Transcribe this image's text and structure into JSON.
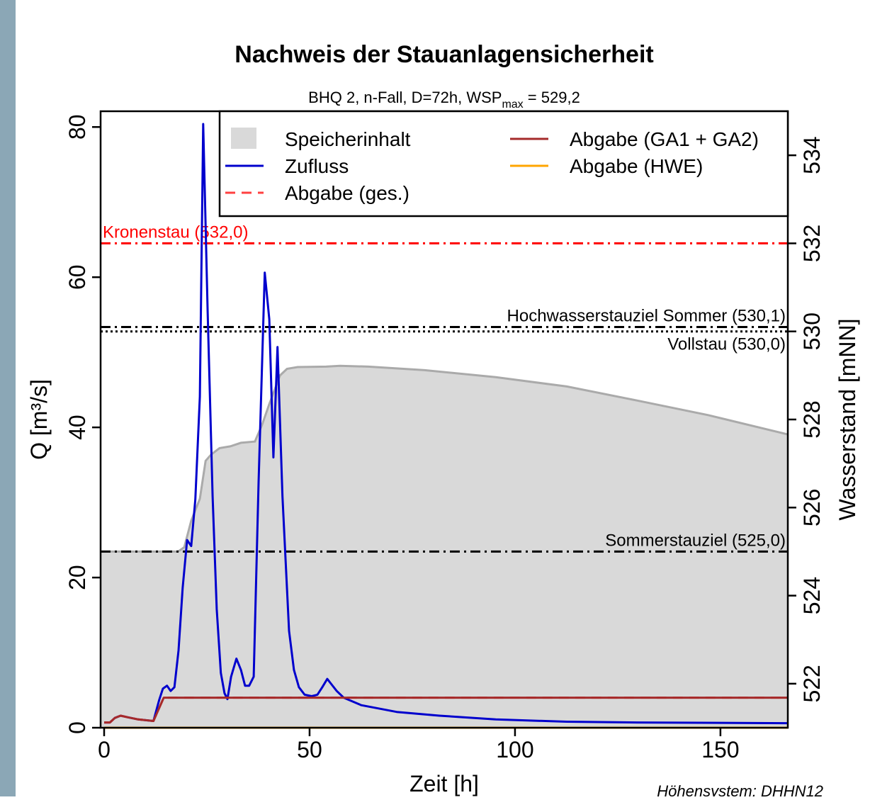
{
  "chart_data": {
    "type": "line",
    "title": "Nachweis der Stauanlagensicherheit",
    "subtitle": "BHQ 2, n-Fall, D=72h, WSP",
    "subtitle_sub": "max",
    "subtitle_end": " = 529,2",
    "xlabel": "Zeit [h]",
    "ylabel": "Q [m³/s]",
    "y2label": "Wasserstand [mNN]",
    "footnote": "Höhensystem: DHHN12",
    "xlim": [
      -0.86,
      166.4
    ],
    "xticks": [
      0,
      50,
      100,
      150
    ],
    "ylim": [
      0,
      82.1
    ],
    "yticks": [
      0,
      20,
      40,
      60,
      80
    ],
    "y2lim": [
      521.0,
      535.0
    ],
    "y2ticks": [
      522,
      524,
      526,
      528,
      530,
      532,
      534
    ],
    "legend": "top-right",
    "series": [
      {
        "name": "Speicherinhalt",
        "type": "area",
        "axis": "y2",
        "color": "#d9d9d9",
        "line_color": "#aaaaaa",
        "x": [
          -0.86,
          18,
          19.5,
          21.2,
          23.3,
          24.7,
          26,
          28.1,
          30.7,
          33.3,
          36.7,
          38.4,
          40.2,
          42.8,
          44.5,
          47.1,
          54,
          57.4,
          64.3,
          78,
          95.3,
          112.6,
          129.8,
          147,
          166.4
        ],
        "values": [
          525.0,
          525.0,
          525.1,
          525.7,
          526.2,
          527.06,
          527.2,
          527.35,
          527.39,
          527.47,
          527.5,
          527.87,
          528.35,
          529.0,
          529.15,
          529.19,
          529.2,
          529.22,
          529.2,
          529.12,
          528.96,
          528.75,
          528.43,
          528.1,
          527.66
        ]
      },
      {
        "name": "Zufluss",
        "type": "line",
        "axis": "y",
        "color": "#0000cd",
        "x": [
          0,
          1.4,
          2.6,
          4,
          5.7,
          8.3,
          12,
          13.4,
          14.3,
          15.3,
          16.2,
          17.1,
          18.1,
          19.1,
          20.2,
          21.2,
          22.2,
          23.3,
          24.1,
          25.2,
          26.4,
          27.4,
          28.4,
          29.3,
          30,
          30.9,
          32.2,
          33.3,
          34.3,
          35.3,
          36.4,
          37.6,
          39.1,
          40.2,
          41.2,
          42.2,
          43.4,
          45,
          46.2,
          47.4,
          48.8,
          50.5,
          51.9,
          53.1,
          54.3,
          55.3,
          56.6,
          58.3,
          62.6,
          71.2,
          81.6,
          95.3,
          112.6,
          129.8,
          166.4
        ],
        "values": [
          0.7,
          0.7,
          1.3,
          1.6,
          1.4,
          1.1,
          0.9,
          3.7,
          5.2,
          5.6,
          4.9,
          5.4,
          10.3,
          18.6,
          25,
          24.2,
          30.4,
          44.1,
          80.4,
          55.4,
          30.8,
          15.8,
          7.3,
          4.6,
          3.8,
          6.8,
          9.2,
          7.7,
          5.6,
          5.6,
          6.8,
          32.7,
          60.6,
          54.4,
          36,
          50.7,
          30.8,
          12.9,
          7.7,
          5.4,
          4.4,
          4.2,
          4.4,
          5.4,
          6.5,
          5.8,
          4.9,
          4,
          3,
          2.1,
          1.6,
          1.1,
          0.8,
          0.7,
          0.6
        ]
      },
      {
        "name": "Abgabe (ges.)",
        "type": "line",
        "axis": "y",
        "color": "#ff4040",
        "dash": "dashed",
        "x": [
          0,
          1.4,
          2.6,
          4,
          5.7,
          8.3,
          12,
          14.5,
          166.4
        ],
        "values": [
          0.7,
          0.7,
          1.3,
          1.6,
          1.4,
          1.1,
          0.9,
          4.0,
          4.0
        ]
      },
      {
        "name": "Abgabe (GA1 + GA2)",
        "type": "line",
        "axis": "y",
        "color": "#a52a2a",
        "x": [
          0,
          1.4,
          2.6,
          4,
          5.7,
          8.3,
          12,
          14.5,
          166.4
        ],
        "values": [
          0.7,
          0.7,
          1.3,
          1.6,
          1.4,
          1.1,
          0.9,
          4.0,
          4.0
        ]
      },
      {
        "name": "Abgabe (HWE)",
        "type": "line",
        "axis": "y",
        "color": "#ffa500",
        "x": [
          0,
          166.4
        ],
        "values": [
          0,
          0
        ]
      }
    ],
    "reference_lines": [
      {
        "label": "Kronenstau (532,0)",
        "value": 532.0,
        "color": "#ff0000",
        "dash": "dashdot",
        "label_align": "left",
        "label_position": "above"
      },
      {
        "label": "Hochwasserstauziel Sommer (530,1)",
        "value": 530.1,
        "color": "#000000",
        "dash": "dashdot",
        "label_align": "right",
        "label_position": "above"
      },
      {
        "label": "Vollstau (530,0)",
        "value": 530.0,
        "color": "#000000",
        "dash": "dotted",
        "label_align": "right",
        "label_position": "below"
      },
      {
        "label": "Sommerstauziel (525,0)",
        "value": 525.0,
        "color": "#000000",
        "dash": "dashdot",
        "label_align": "right",
        "label_position": "above"
      }
    ]
  }
}
